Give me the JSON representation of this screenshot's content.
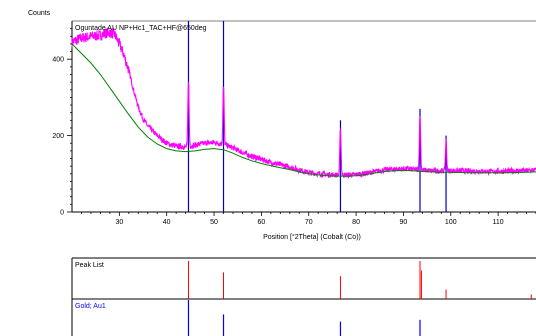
{
  "chart_data": [
    {
      "type": "line",
      "title": "Oguntade AU NP+Hc1_TAC+HF@650deg",
      "ylabel": "Counts",
      "xlabel": "Position [°2Theta] (Cobalt (Co))",
      "xlim": [
        20,
        118
      ],
      "ylim": [
        0,
        500
      ],
      "x_ticks": [
        30,
        40,
        50,
        60,
        70,
        80,
        90,
        100,
        110
      ],
      "y_ticks": [
        0,
        200,
        400
      ],
      "grid": false,
      "series": [
        {
          "color": "#ff00ff",
          "style": "noisy measured pattern",
          "x": [
            20,
            22,
            24,
            26,
            27,
            28,
            29,
            30,
            31,
            32,
            33,
            34,
            35,
            36,
            38,
            40,
            42,
            44,
            46,
            48,
            50,
            52,
            54,
            56,
            58,
            60,
            62,
            64,
            66,
            68,
            70,
            72,
            74,
            76,
            78,
            80,
            82,
            84,
            86,
            88,
            90,
            92,
            94,
            96,
            98,
            100,
            102,
            104,
            106,
            108,
            110,
            112,
            114,
            116,
            118
          ],
          "y": [
            445,
            455,
            460,
            462,
            468,
            470,
            465,
            440,
            410,
            370,
            320,
            275,
            245,
            225,
            200,
            180,
            172,
            170,
            175,
            180,
            182,
            178,
            168,
            156,
            145,
            138,
            130,
            124,
            118,
            110,
            103,
            100,
            98,
            97,
            97,
            98,
            101,
            106,
            110,
            112,
            113,
            112,
            110,
            108,
            108,
            108,
            108,
            107,
            107,
            106,
            106,
            107,
            108,
            108,
            110
          ]
        },
        {
          "color": "#008000",
          "style": "background",
          "x": [
            20,
            22,
            24,
            26,
            28,
            30,
            32,
            34,
            36,
            38,
            40,
            42,
            44,
            46,
            48,
            50,
            52,
            54,
            56,
            58,
            60,
            62,
            64,
            66,
            68,
            70,
            72,
            74,
            76,
            78,
            80,
            82,
            84,
            86,
            88,
            90,
            92,
            94,
            96,
            98,
            100,
            104,
            108,
            112,
            116,
            118
          ],
          "y": [
            440,
            415,
            390,
            360,
            325,
            290,
            255,
            222,
            196,
            178,
            166,
            160,
            158,
            160,
            164,
            166,
            163,
            154,
            143,
            134,
            127,
            121,
            116,
            111,
            105,
            100,
            97,
            95,
            94,
            94,
            95,
            98,
            102,
            106,
            108,
            109,
            108,
            106,
            105,
            104,
            104,
            103,
            103,
            103,
            104,
            105
          ]
        }
      ],
      "peaks": [
        {
          "x": 44.6,
          "height": 175
        },
        {
          "x": 52.0,
          "height": 150
        },
        {
          "x": 76.7,
          "height": 125
        },
        {
          "x": 93.5,
          "height": 140
        },
        {
          "x": 99.0,
          "height": 80
        }
      ],
      "reference_lines": {
        "color": "#0000cc",
        "x": [
          44.6,
          52.0,
          76.7,
          93.5,
          99.0
        ],
        "full_height": [
          44.6,
          52.0
        ],
        "bottom_to_value": {
          "76.7": 240,
          "93.5": 270,
          "99.0": 165
        }
      }
    },
    {
      "type": "bar",
      "title": "Peak List",
      "color": "#ff0000",
      "x": [
        44.6,
        52.0,
        76.7,
        93.5,
        93.8,
        99.0,
        117.0
      ],
      "values": [
        1.0,
        0.7,
        0.6,
        1.0,
        0.75,
        0.25,
        0.12
      ]
    },
    {
      "type": "bar",
      "title": "Gold; Au1",
      "color": "#0000ff",
      "x": [
        44.6,
        52.0,
        76.7,
        93.5
      ],
      "values": [
        1.0,
        0.6,
        0.4,
        0.45
      ]
    }
  ]
}
